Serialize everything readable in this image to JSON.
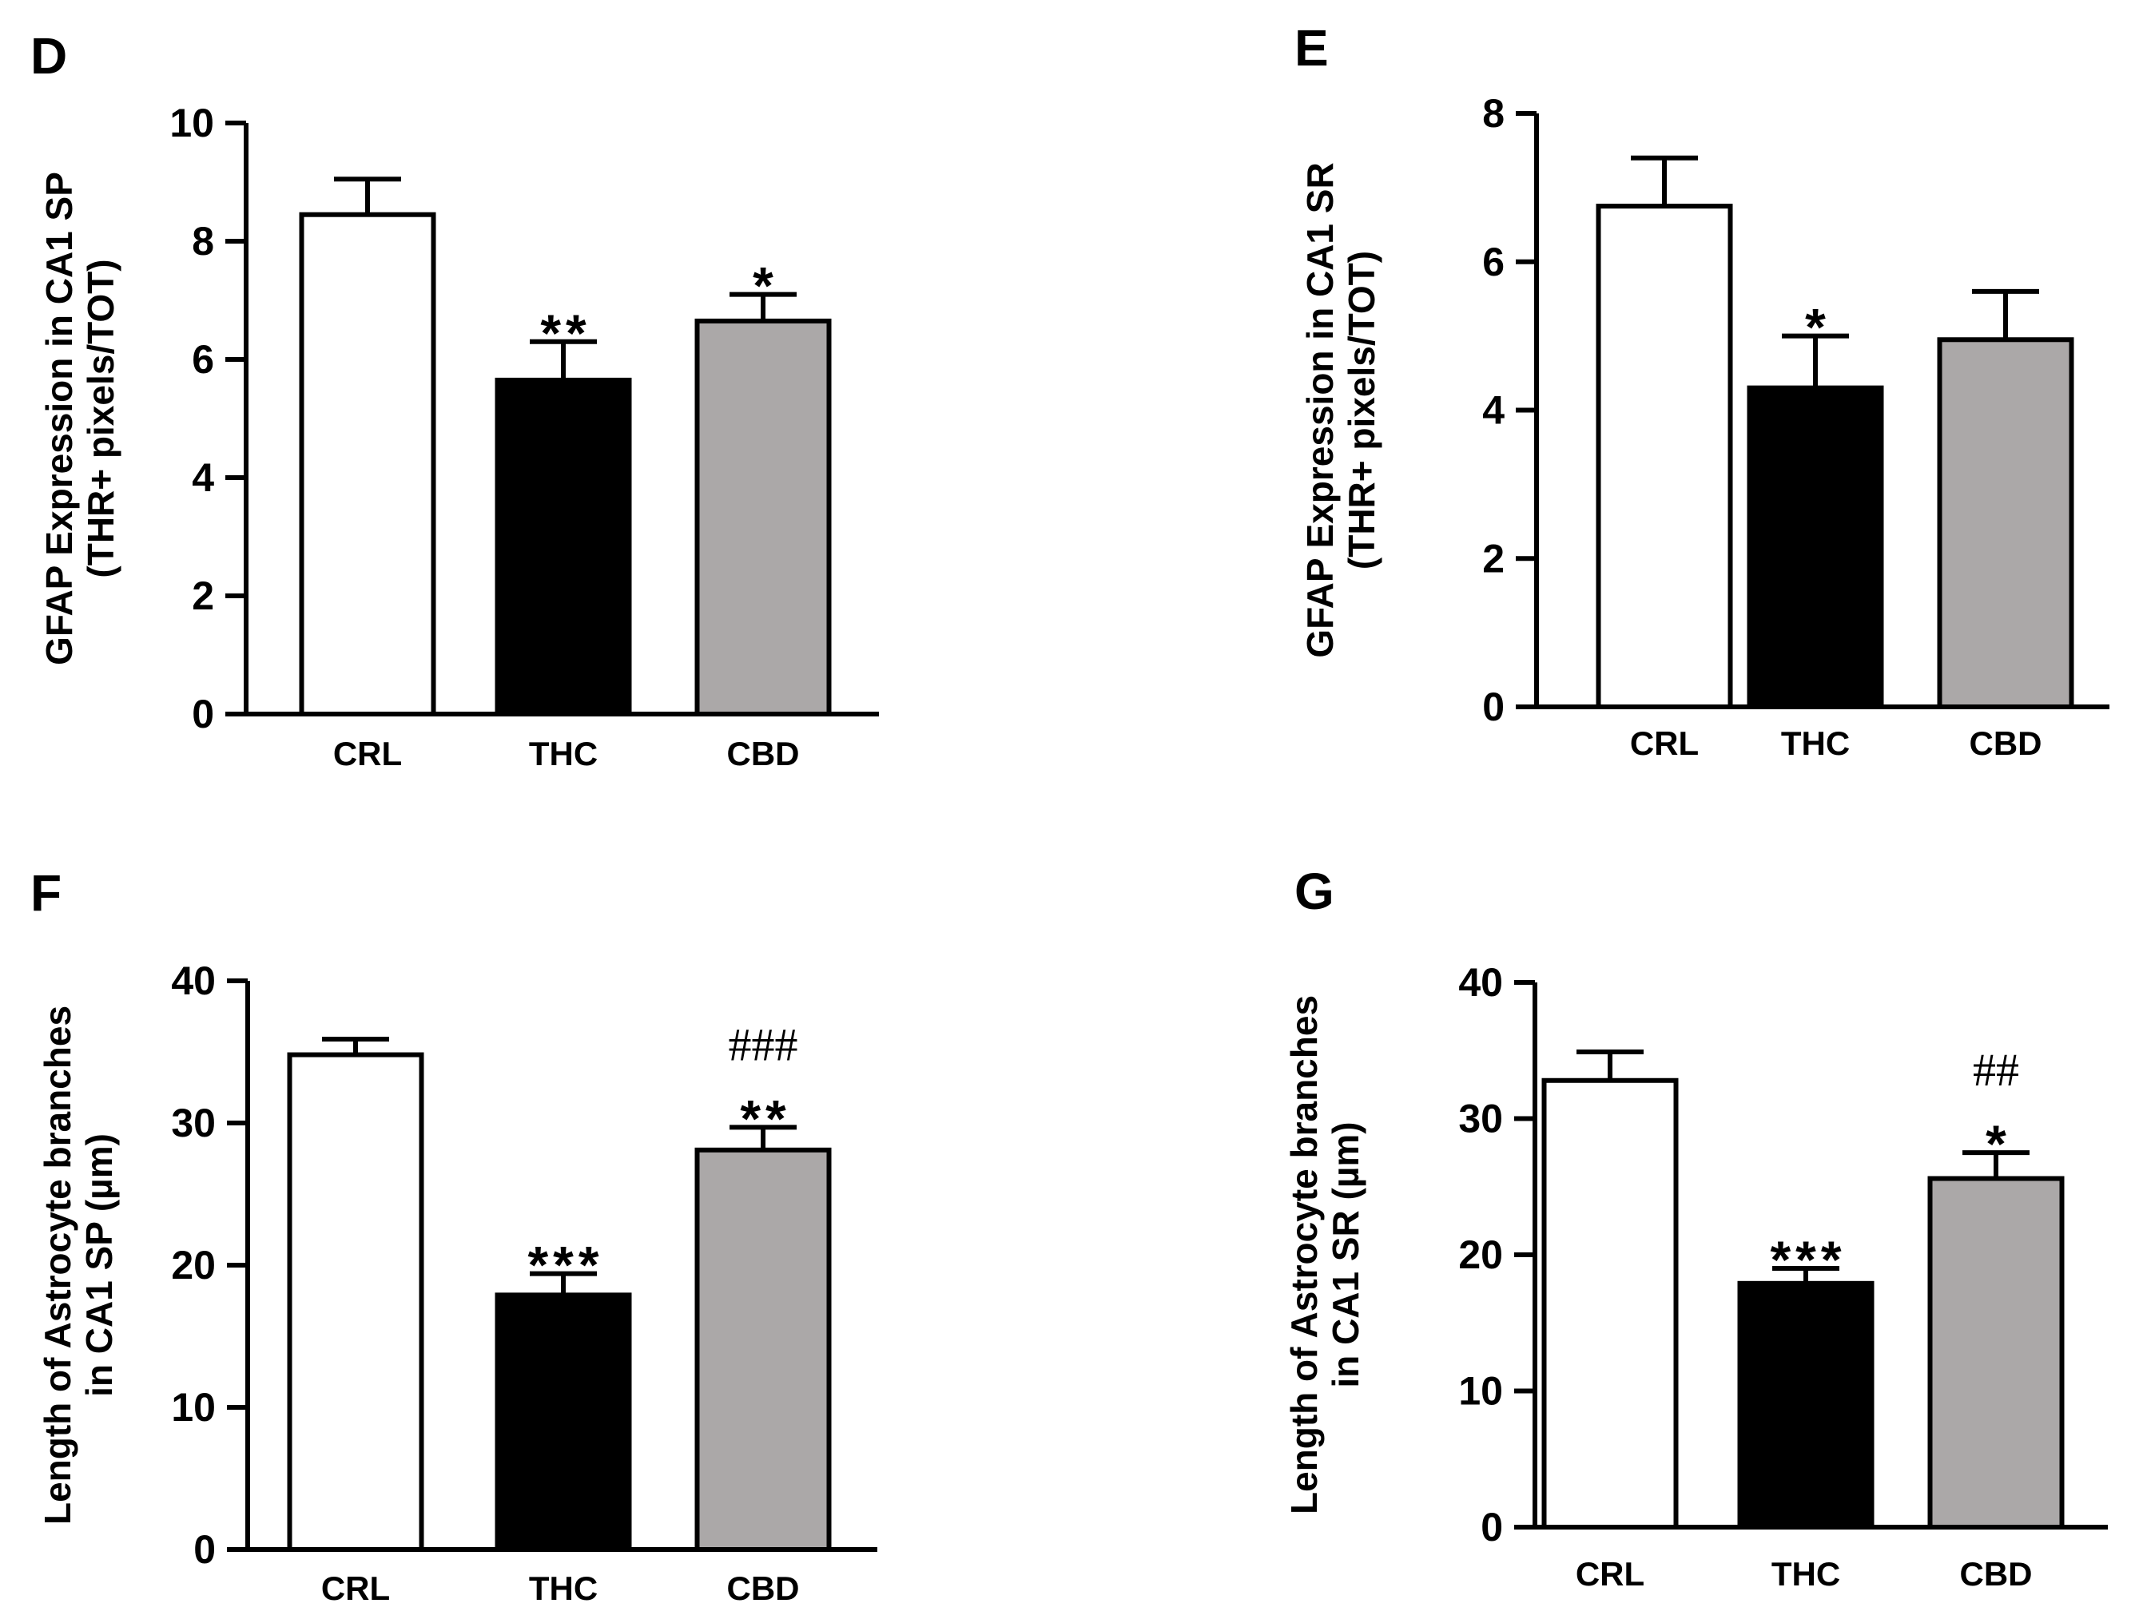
{
  "figure": {
    "style": {
      "stroke": "#000000",
      "background": "#ffffff"
    }
  },
  "chart_data": [
    {
      "panel": "D",
      "type": "bar",
      "categories": [
        "CRL",
        "THC",
        "CBD"
      ],
      "values": [
        8.45,
        5.65,
        6.65
      ],
      "errors": [
        0.6,
        0.65,
        0.45
      ],
      "colors": [
        "#ffffff",
        "#000000",
        "#aba8a8"
      ],
      "ylabel": [
        "GFAP Expression in CA1 SP",
        "(THR+ pixels/TOT)"
      ],
      "ylim": [
        0,
        10
      ],
      "yticks": [
        0,
        2,
        4,
        6,
        8,
        10
      ],
      "annotations": [
        {
          "category": "THC",
          "lines": [
            {
              "text": "**",
              "kind": "star"
            }
          ]
        },
        {
          "category": "CBD",
          "lines": [
            {
              "text": "*",
              "kind": "star"
            }
          ]
        }
      ]
    },
    {
      "panel": "E",
      "type": "bar",
      "categories": [
        "CRL",
        "THC",
        "CBD"
      ],
      "values": [
        6.75,
        4.3,
        4.95
      ],
      "errors": [
        0.65,
        0.7,
        0.65
      ],
      "colors": [
        "#ffffff",
        "#000000",
        "#aba8a8"
      ],
      "ylabel": [
        "GFAP Expression in CA1 SR",
        "(THR+ pixels/TOT)"
      ],
      "ylim": [
        0,
        8
      ],
      "yticks": [
        0,
        2,
        4,
        6,
        8
      ],
      "annotations": [
        {
          "category": "THC",
          "lines": [
            {
              "text": "*",
              "kind": "star"
            }
          ]
        }
      ]
    },
    {
      "panel": "F",
      "type": "bar",
      "categories": [
        "CRL",
        "THC",
        "CBD"
      ],
      "values": [
        34.8,
        17.9,
        28.1
      ],
      "errors": [
        1.1,
        1.5,
        1.6
      ],
      "colors": [
        "#ffffff",
        "#000000",
        "#aba8a8"
      ],
      "ylabel": [
        "Length of Astrocyte branches",
        "in CA1 SP (µm)"
      ],
      "ylim": [
        0,
        40
      ],
      "yticks": [
        0,
        10,
        20,
        30,
        40
      ],
      "annotations": [
        {
          "category": "THC",
          "lines": [
            {
              "text": "***",
              "kind": "star"
            }
          ]
        },
        {
          "category": "CBD",
          "lines": [
            {
              "text": "###",
              "kind": "hash"
            },
            {
              "text": "**",
              "kind": "star"
            }
          ]
        }
      ]
    },
    {
      "panel": "G",
      "type": "bar",
      "categories": [
        "CRL",
        "THC",
        "CBD"
      ],
      "values": [
        32.8,
        17.9,
        25.6
      ],
      "errors": [
        2.1,
        1.1,
        1.9
      ],
      "colors": [
        "#ffffff",
        "#000000",
        "#aba8a8"
      ],
      "ylabel": [
        "Length of Astrocyte branches",
        "in CA1 SR (µm)"
      ],
      "ylim": [
        0,
        40
      ],
      "yticks": [
        0,
        10,
        20,
        30,
        40
      ],
      "annotations": [
        {
          "category": "THC",
          "lines": [
            {
              "text": "***",
              "kind": "star"
            }
          ]
        },
        {
          "category": "CBD",
          "lines": [
            {
              "text": "##",
              "kind": "hash"
            },
            {
              "text": "*",
              "kind": "star"
            }
          ]
        }
      ]
    }
  ]
}
